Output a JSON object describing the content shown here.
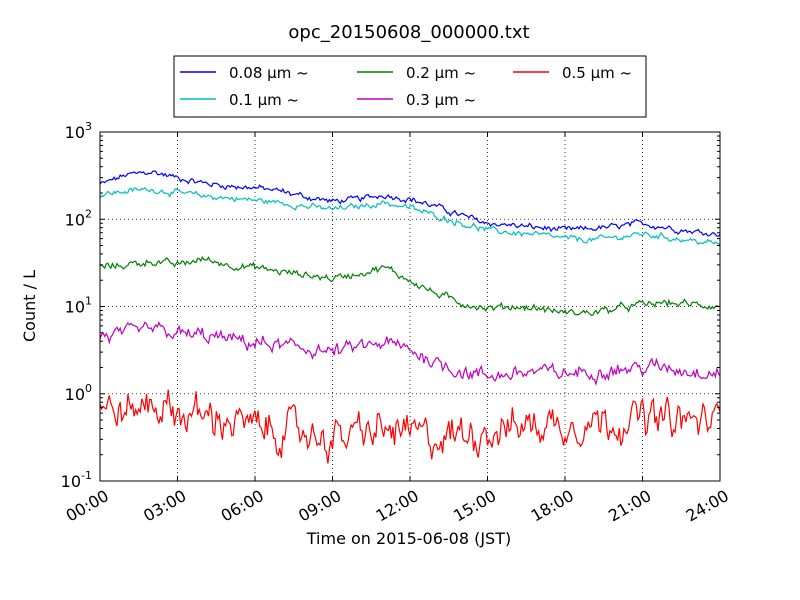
{
  "chart_data": {
    "type": "line",
    "title": "opc_20150608_000000.txt",
    "xlabel": "Time on 2015-06-08 (JST)",
    "ylabel": "Count / L",
    "yscale": "log",
    "ylim": [
      0.1,
      1000
    ],
    "xlim_hours": [
      0,
      24
    ],
    "x_ticks": [
      "00:00",
      "03:00",
      "06:00",
      "09:00",
      "12:00",
      "15:00",
      "18:00",
      "21:00",
      "24:00"
    ],
    "y_ticks": [
      {
        "base": "10",
        "exp": "-1",
        "value": 0.1
      },
      {
        "base": "10",
        "exp": "0",
        "value": 1
      },
      {
        "base": "10",
        "exp": "1",
        "value": 10
      },
      {
        "base": "10",
        "exp": "2",
        "value": 100
      },
      {
        "base": "10",
        "exp": "3",
        "value": 1000
      }
    ],
    "grid": true,
    "legend_position": "top (above plot)",
    "legend_unit": "μm ~",
    "x": [
      "00:00",
      "01:00",
      "02:00",
      "03:00",
      "04:00",
      "05:00",
      "06:00",
      "07:00",
      "08:00",
      "09:00",
      "10:00",
      "11:00",
      "12:00",
      "13:00",
      "14:00",
      "15:00",
      "16:00",
      "17:00",
      "18:00",
      "19:00",
      "20:00",
      "21:00",
      "22:00",
      "23:00",
      "24:00"
    ],
    "series": [
      {
        "name": "0.08",
        "color": "#0000ff",
        "noise": 0.05,
        "values": [
          250,
          320,
          350,
          300,
          260,
          240,
          230,
          210,
          180,
          160,
          170,
          190,
          170,
          140,
          110,
          90,
          85,
          80,
          75,
          78,
          82,
          90,
          80,
          72,
          68
        ]
      },
      {
        "name": "0.1",
        "color": "#00bfbf",
        "noise": 0.05,
        "values": [
          190,
          210,
          220,
          200,
          185,
          175,
          165,
          155,
          140,
          130,
          140,
          155,
          135,
          110,
          90,
          75,
          70,
          66,
          60,
          58,
          62,
          68,
          62,
          56,
          52
        ]
      },
      {
        "name": "0.2",
        "color": "#008000",
        "noise": 0.06,
        "values": [
          28,
          30,
          33,
          30,
          35,
          30,
          28,
          25,
          23,
          21,
          24,
          28,
          20,
          14,
          11,
          9.5,
          10,
          9.5,
          8.5,
          8.5,
          9.5,
          10.5,
          11,
          10.5,
          10
        ]
      },
      {
        "name": "0.3",
        "color": "#bf00bf",
        "noise": 0.12,
        "values": [
          4.5,
          4.8,
          5.5,
          4.8,
          4.6,
          4.2,
          3.8,
          3.5,
          3.3,
          3.0,
          3.4,
          3.8,
          3.2,
          2.3,
          1.8,
          1.6,
          1.7,
          1.8,
          1.7,
          1.8,
          1.9,
          2.0,
          2.0,
          1.8,
          1.8
        ]
      },
      {
        "name": "0.5",
        "color": "#ff0000",
        "noise": 0.3,
        "values": [
          0.7,
          0.6,
          0.8,
          0.6,
          0.55,
          0.5,
          0.4,
          0.38,
          0.36,
          0.3,
          0.35,
          0.38,
          0.35,
          0.3,
          0.35,
          0.38,
          0.42,
          0.45,
          0.45,
          0.48,
          0.5,
          0.52,
          0.5,
          0.48,
          0.5
        ]
      }
    ]
  }
}
